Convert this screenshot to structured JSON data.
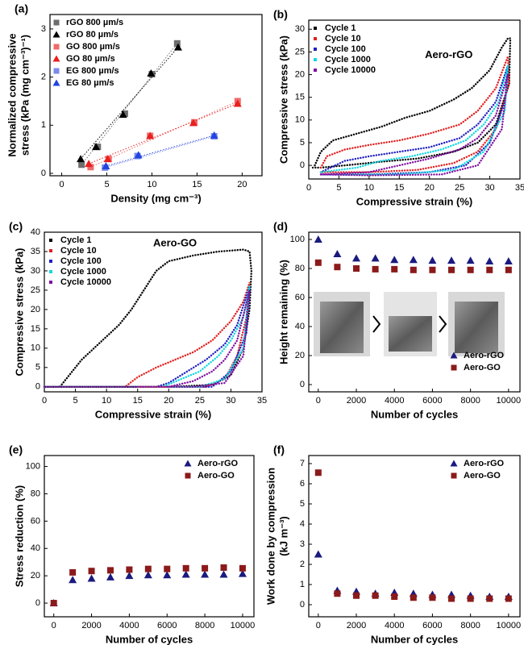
{
  "chart_data": [
    {
      "type": "scatter",
      "panel_label": "(a)",
      "xlabel": "Density (mg cm⁻³)",
      "ylabel": [
        "Normalized compressive",
        "stress (kPa (mg cm⁻³)⁻¹)"
      ],
      "xlim": [
        -1.3,
        22.2
      ],
      "xticks": [
        0,
        5,
        10,
        15,
        20
      ],
      "ylim": [
        -0.05,
        3.3
      ],
      "yticks": [
        0,
        1,
        2,
        3
      ],
      "legend": "upper left",
      "trend_lines": true,
      "series": [
        {
          "name": "rGO 800 µm/s",
          "color": "#6e6e6e",
          "marker": "square",
          "x": [
            2.2,
            4.0,
            7.0,
            10.0,
            12.8
          ],
          "values": [
            0.18,
            0.55,
            1.24,
            2.06,
            2.7
          ]
        },
        {
          "name": "rGO 80 µm/s",
          "color": "#000000",
          "marker": "triangle",
          "x": [
            2.1,
            3.8,
            6.8,
            9.9,
            12.9
          ],
          "values": [
            0.3,
            0.55,
            1.22,
            2.08,
            2.62
          ]
        },
        {
          "name": "GO 800 µm/s",
          "color": "#f06a6a",
          "marker": "square",
          "x": [
            3.2,
            5.2,
            9.8,
            14.7,
            19.5
          ],
          "values": [
            0.13,
            0.3,
            0.78,
            1.06,
            1.5
          ]
        },
        {
          "name": "GO 80 µm/s",
          "color": "#e8201e",
          "marker": "triangle",
          "x": [
            3.0,
            5.1,
            9.8,
            14.6,
            19.5
          ],
          "values": [
            0.2,
            0.3,
            0.78,
            1.05,
            1.45
          ]
        },
        {
          "name": "EG 800 µm/s",
          "color": "#7b8ae8",
          "marker": "square",
          "x": [
            4.8,
            8.4,
            16.9
          ],
          "values": [
            0.12,
            0.36,
            0.77
          ]
        },
        {
          "name": "EG 80 µm/s",
          "color": "#2244e0",
          "marker": "triangle",
          "x": [
            4.9,
            8.5,
            16.9
          ],
          "values": [
            0.15,
            0.38,
            0.79
          ]
        }
      ]
    },
    {
      "type": "line",
      "panel_label": "(b)",
      "annotation": "Aero-rGO",
      "xlabel": "Compressive strain (%)",
      "ylabel": [
        "Compressive stress (kPa)"
      ],
      "xlim": [
        0,
        35
      ],
      "xticks": [
        0,
        5,
        10,
        15,
        20,
        25,
        30,
        35
      ],
      "ylim": [
        -3,
        32
      ],
      "yticks": [
        0,
        5,
        10,
        15,
        20,
        25,
        30
      ],
      "legend": "upper left",
      "series": [
        {
          "name": "Cycle 1",
          "color": "#000000",
          "x": [
            1,
            2,
            4,
            8,
            12,
            16,
            20,
            24,
            27,
            30,
            32,
            33,
            33.4,
            33.2,
            31,
            28,
            24,
            18,
            12,
            6,
            2,
            0.5
          ],
          "values": [
            0,
            3,
            5.5,
            7,
            8.5,
            10.5,
            12,
            14.5,
            17,
            21,
            26,
            28,
            28,
            18,
            9,
            5,
            3,
            1.5,
            0.8,
            0,
            -0.5,
            -0.5
          ]
        },
        {
          "name": "Cycle 10",
          "color": "#e02020",
          "x": [
            2,
            3,
            6,
            10,
            15,
            20,
            25,
            28,
            31,
            33,
            33.2,
            31,
            28,
            24,
            18,
            10,
            2
          ],
          "values": [
            -0.5,
            2,
            3.5,
            4.5,
            5.5,
            7,
            9,
            12,
            17,
            24,
            18,
            8,
            3,
            0.5,
            -1,
            -1.5,
            -1.5
          ]
        },
        {
          "name": "Cycle 100",
          "color": "#2020c0",
          "x": [
            2,
            6,
            10,
            15,
            20,
            25,
            28,
            31,
            33,
            32.5,
            30,
            26,
            20,
            10,
            2
          ],
          "values": [
            -1.5,
            1,
            2,
            3,
            4,
            6,
            9,
            14,
            22,
            14,
            5,
            0,
            -1.5,
            -2,
            -2
          ]
        },
        {
          "name": "Cycle 1000",
          "color": "#10d8e0",
          "x": [
            2,
            8,
            12,
            17,
            22,
            26,
            29,
            31.5,
            33,
            32.5,
            29,
            24,
            15,
            5,
            2
          ],
          "values": [
            -1.5,
            -0.5,
            1,
            2,
            3.5,
            5.5,
            9,
            14,
            22,
            12,
            3,
            -1,
            -2,
            -2,
            -2
          ]
        },
        {
          "name": "Cycle 10000",
          "color": "#8010a0",
          "x": [
            2,
            10,
            15,
            20,
            25,
            28,
            31,
            33,
            32,
            28,
            22,
            10,
            2
          ],
          "values": [
            -2,
            -1.5,
            0,
            1.5,
            3.5,
            6,
            11,
            20,
            8,
            0,
            -2,
            -2.2,
            -2
          ]
        }
      ]
    },
    {
      "type": "line",
      "panel_label": "(c)",
      "annotation": "Aero-GO",
      "xlabel": "Compressive strain (%)",
      "ylabel": [
        "Compressive stress (kPa)"
      ],
      "xlim": [
        0,
        35
      ],
      "xticks": [
        0,
        5,
        10,
        15,
        20,
        25,
        30,
        35
      ],
      "ylim": [
        -1.3,
        40
      ],
      "yticks": [
        0,
        5,
        10,
        15,
        20,
        25,
        30,
        35,
        40
      ],
      "legend": "upper left",
      "series": [
        {
          "name": "Cycle 1",
          "color": "#000000",
          "x": [
            0,
            2.5,
            4,
            6,
            8,
            10,
            12,
            14,
            16,
            18,
            20,
            24,
            28,
            32,
            33,
            33.3,
            33,
            32,
            30,
            27,
            20,
            10,
            0
          ],
          "values": [
            0,
            0,
            3,
            7,
            10,
            13,
            16,
            20,
            25,
            30,
            32.5,
            34,
            35,
            35.5,
            35,
            30,
            20,
            10,
            3,
            0.5,
            0,
            0,
            0
          ]
        },
        {
          "name": "Cycle 10",
          "color": "#e02020",
          "x": [
            0,
            13,
            15,
            18,
            21,
            24,
            27,
            30,
            32,
            33,
            32.5,
            31,
            29,
            26,
            15
          ],
          "values": [
            0,
            0,
            2.5,
            5,
            7,
            9,
            12,
            17,
            22,
            27,
            18,
            8,
            2,
            0,
            0
          ]
        },
        {
          "name": "Cycle 100",
          "color": "#2020c0",
          "x": [
            0,
            18,
            20,
            23,
            26,
            29,
            31,
            33,
            32.5,
            30,
            27,
            20
          ],
          "values": [
            0,
            0,
            1,
            4,
            7,
            11,
            16,
            26,
            14,
            4,
            0,
            0
          ]
        },
        {
          "name": "Cycle 1000",
          "color": "#10d8e0",
          "x": [
            0,
            19,
            22,
            25,
            28,
            30,
            32,
            33,
            32,
            29,
            25,
            20
          ],
          "values": [
            0,
            0,
            2,
            4,
            8,
            12,
            18,
            26,
            10,
            2,
            0,
            0
          ]
        },
        {
          "name": "Cycle 10000",
          "color": "#8010a0",
          "x": [
            0,
            20,
            24,
            27,
            29,
            31,
            33,
            32,
            29,
            24,
            20
          ],
          "values": [
            0,
            0,
            1.5,
            4,
            7,
            12,
            25,
            8,
            1,
            0,
            0
          ]
        }
      ]
    },
    {
      "type": "scatter",
      "panel_label": "(d)",
      "xlabel": "Number of cycles",
      "ylabel": [
        "Height remaining (%)"
      ],
      "x": [
        0,
        1000,
        2000,
        3000,
        4000,
        5000,
        6000,
        7000,
        8000,
        9000,
        10000
      ],
      "xlim": [
        -500,
        10600
      ],
      "xticks": [
        0,
        2000,
        4000,
        6000,
        8000,
        10000
      ],
      "ylim": [
        -5,
        105
      ],
      "yticks": [
        0,
        20,
        40,
        60,
        80,
        100
      ],
      "legend": "lower right",
      "series": [
        {
          "name": "Aero-rGO",
          "color": "#1a1a80",
          "marker": "triangle",
          "values": [
            100,
            90,
            87,
            87,
            86,
            86,
            85.5,
            85.5,
            85.5,
            85,
            85
          ]
        },
        {
          "name": "Aero-GO",
          "color": "#8b1a1a",
          "marker": "square",
          "values": [
            84,
            81,
            80,
            79.5,
            79.5,
            79,
            79,
            79,
            79,
            79,
            79
          ]
        }
      ]
    },
    {
      "type": "scatter",
      "panel_label": "(e)",
      "xlabel": "Number of cycles",
      "ylabel": [
        "Stress reduction (%)"
      ],
      "x": [
        0,
        1000,
        2000,
        3000,
        4000,
        5000,
        6000,
        7000,
        8000,
        9000,
        10000
      ],
      "xlim": [
        -500,
        10600
      ],
      "xticks": [
        0,
        2000,
        4000,
        6000,
        8000,
        10000
      ],
      "ylim": [
        -10,
        108
      ],
      "yticks": [
        0,
        20,
        40,
        60,
        80,
        100
      ],
      "legend": "upper right",
      "series": [
        {
          "name": "Aero-rGO",
          "color": "#1a1a80",
          "marker": "triangle",
          "values": [
            0,
            17,
            18,
            19,
            20,
            20.5,
            20.5,
            21,
            21,
            21,
            21.5
          ]
        },
        {
          "name": "Aero-GO",
          "color": "#8b1a1a",
          "marker": "square",
          "values": [
            0,
            22.5,
            23.5,
            24,
            24.5,
            25,
            25,
            25.5,
            25.5,
            26,
            25.5
          ]
        }
      ]
    },
    {
      "type": "scatter",
      "panel_label": "(f)",
      "xlabel": "Number of cycles",
      "ylabel": [
        "Work done by compression",
        "(kJ m⁻³)"
      ],
      "x": [
        0,
        1000,
        2000,
        3000,
        4000,
        5000,
        6000,
        7000,
        8000,
        9000,
        10000
      ],
      "xlim": [
        -500,
        10600
      ],
      "xticks": [
        0,
        2000,
        4000,
        6000,
        8000,
        10000
      ],
      "ylim": [
        -0.6,
        7.4
      ],
      "yticks": [
        0,
        1,
        2,
        3,
        4,
        5,
        6,
        7
      ],
      "legend": "upper right",
      "series": [
        {
          "name": "Aero-rGO",
          "color": "#1a1a80",
          "marker": "triangle",
          "values": [
            2.5,
            0.7,
            0.65,
            0.55,
            0.6,
            0.55,
            0.5,
            0.5,
            0.45,
            0.4,
            0.4
          ]
        },
        {
          "name": "Aero-GO",
          "color": "#8b1a1a",
          "marker": "square",
          "values": [
            6.55,
            0.55,
            0.45,
            0.45,
            0.4,
            0.35,
            0.35,
            0.3,
            0.3,
            0.3,
            0.3
          ]
        }
      ]
    }
  ]
}
